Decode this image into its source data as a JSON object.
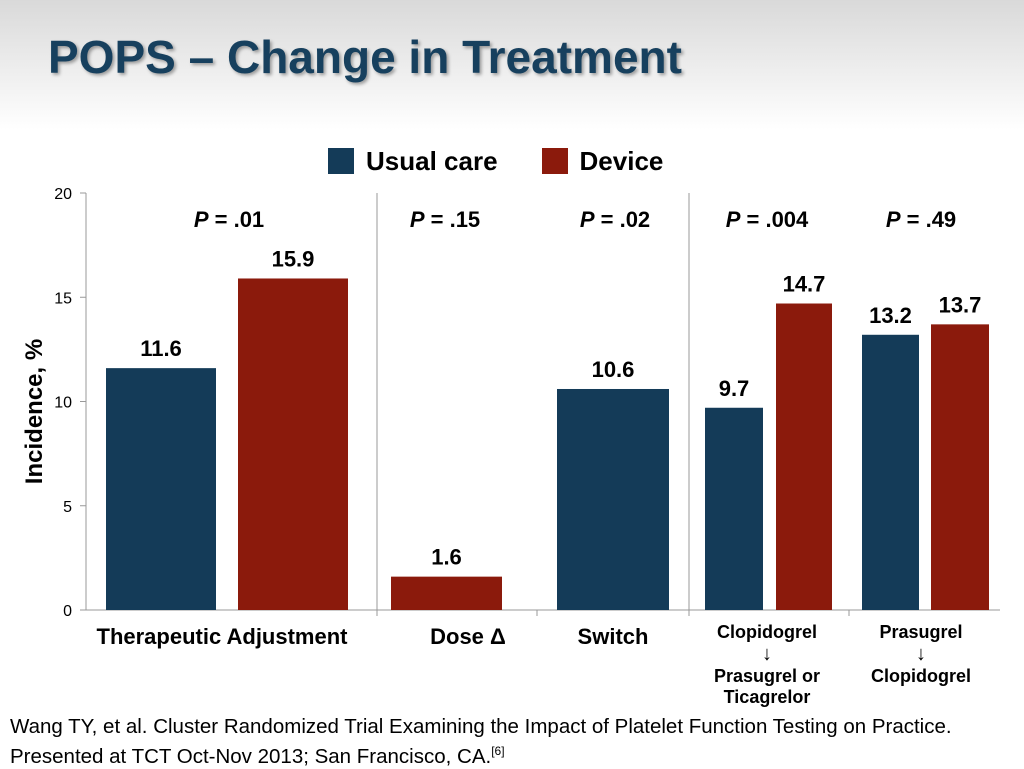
{
  "title": "POPS – Change in Treatment",
  "colors": {
    "usual_care": "#143b58",
    "device": "#8b1a0c",
    "title": "#17405e"
  },
  "chart_data": {
    "type": "bar",
    "ylabel": "Incidence, %",
    "ylim": [
      0,
      20
    ],
    "yticks": [
      0,
      5,
      10,
      15,
      20
    ],
    "grid": false,
    "legend": "top",
    "series": [
      {
        "name": "Usual care",
        "color_key": "usual_care"
      },
      {
        "name": "Device",
        "color_key": "device"
      }
    ],
    "groups": [
      {
        "label": "Therapeutic Adjustment",
        "p_value": ".01",
        "bars": [
          {
            "series": "Usual care",
            "value": 11.6,
            "label": "11.6"
          },
          {
            "series": "Device",
            "value": 15.9,
            "label": "15.9"
          }
        ]
      },
      {
        "label": "Dose Δ",
        "p_value": ".15",
        "bars": [
          {
            "series": "Usual care",
            "value": 0,
            "label": ""
          },
          {
            "series": "Device",
            "value": 1.6,
            "label": "1.6"
          }
        ]
      },
      {
        "label": "Switch",
        "p_value": ".02",
        "bars": [
          {
            "series": "Usual care",
            "value": 10.6,
            "label": "10.6"
          }
        ]
      },
      {
        "label_lines": [
          "Clopidogrel",
          "↓",
          "Prasugrel or",
          "Ticagrelor"
        ],
        "p_value": ".004",
        "bars": [
          {
            "series": "Usual care",
            "value": 9.7,
            "label": "9.7"
          },
          {
            "series": "Device",
            "value": 14.7,
            "label": "14.7"
          }
        ]
      },
      {
        "label_lines": [
          "Prasugrel",
          "↓",
          "Clopidogrel"
        ],
        "p_value": ".49",
        "bars": [
          {
            "series": "Usual care",
            "value": 13.2,
            "label": "13.2"
          },
          {
            "series": "Device",
            "value": 13.7,
            "label": "13.7"
          }
        ]
      }
    ]
  },
  "footnote": {
    "text": "Wang TY, et al. Cluster Randomized Trial Examining the Impact of Platelet Function Testing on Practice. Presented at TCT Oct-Nov 2013; San Francisco, CA.",
    "ref": "[6]"
  }
}
